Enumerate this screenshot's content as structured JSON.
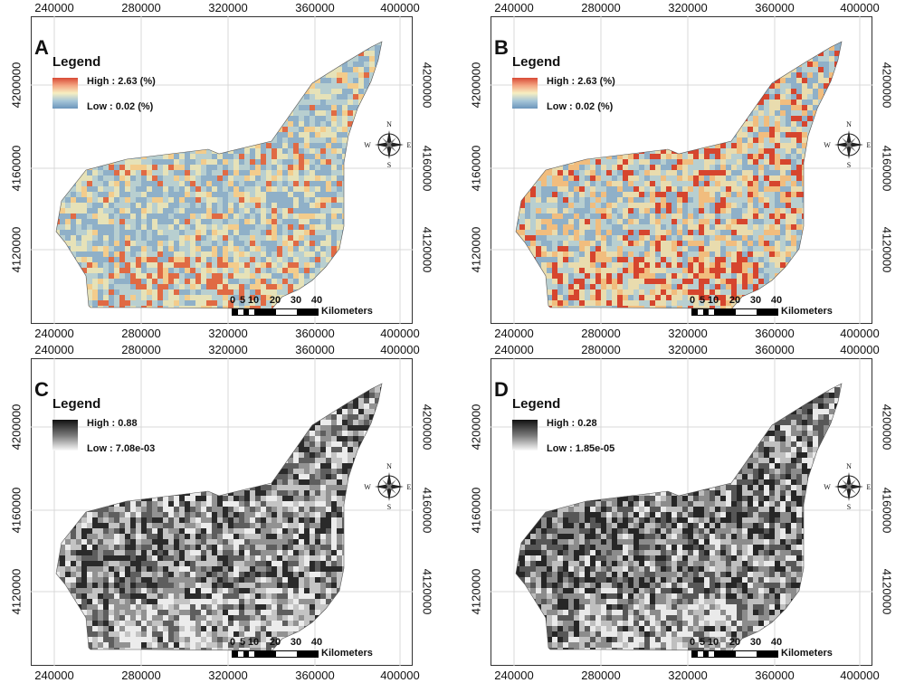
{
  "axes": {
    "x_ticks": [
      "240000",
      "280000",
      "320000",
      "360000",
      "400000"
    ],
    "y_ticks": [
      "4200000",
      "4160000",
      "4120000"
    ]
  },
  "scale": {
    "numbers": [
      "0",
      "5",
      "10",
      "20",
      "30",
      "40"
    ],
    "unit": "Kilometers"
  },
  "compass": {
    "n": "N",
    "s": "S",
    "e": "E",
    "w": "W"
  },
  "panels": [
    {
      "letter": "A",
      "legend_title": "Legend",
      "high": "High : 2.63 (%)",
      "low": "Low : 0.02 (%)",
      "ramp": "color",
      "colors": [
        "#8fb0c8",
        "#b8cfd0",
        "#e6e2b8",
        "#f3cc8c",
        "#e06a44"
      ],
      "mix": [
        0.3,
        0.28,
        0.22,
        0.12,
        0.08
      ]
    },
    {
      "letter": "B",
      "legend_title": "Legend",
      "high": "High : 2.63 (%)",
      "low": "Low : 0.02 (%)",
      "ramp": "color",
      "colors": [
        "#8fb0c8",
        "#b8cfd0",
        "#e9dcae",
        "#f1bd7e",
        "#d6452e"
      ],
      "mix": [
        0.2,
        0.22,
        0.25,
        0.18,
        0.15
      ]
    },
    {
      "letter": "C",
      "legend_title": "Legend",
      "high": "High : 0.88",
      "low": "Low : 7.08e-03",
      "ramp": "gray",
      "colors": [
        "#2a2a2a",
        "#5e5e5e",
        "#929292",
        "#c4c4c4",
        "#ececec"
      ],
      "mix": [
        0.18,
        0.22,
        0.22,
        0.22,
        0.16
      ]
    },
    {
      "letter": "D",
      "legend_title": "Legend",
      "high": "High : 0.28",
      "low": "Low : 1.85e-05",
      "ramp": "gray",
      "colors": [
        "#262626",
        "#575757",
        "#8c8c8c",
        "#bfbfbf",
        "#eaeaea"
      ],
      "mix": [
        0.2,
        0.24,
        0.22,
        0.2,
        0.14
      ]
    }
  ]
}
